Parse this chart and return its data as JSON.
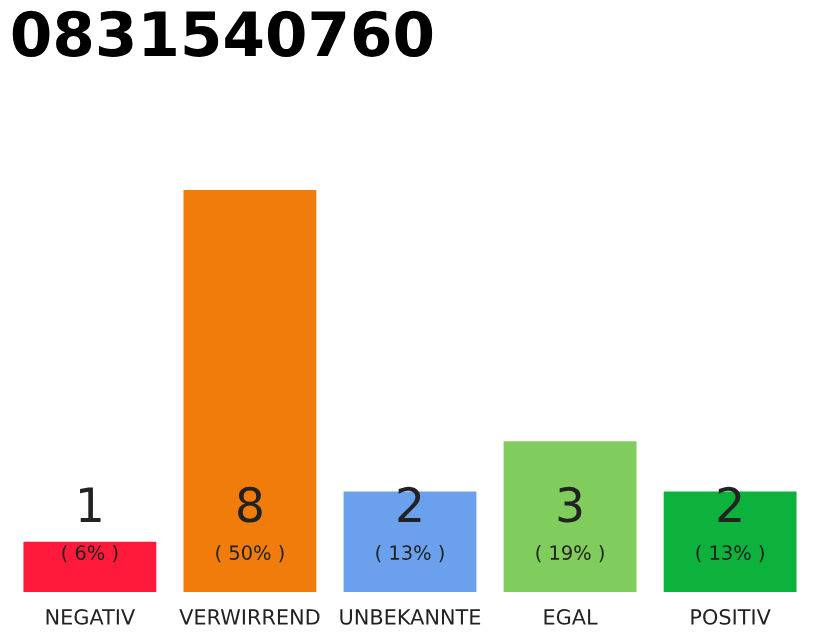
{
  "chart_data": {
    "type": "bar",
    "title": "0831540760",
    "categories": [
      "NEGATIV",
      "VERWIRREND",
      "UNBEKANNTE",
      "EGAL",
      "POSITIV"
    ],
    "values": [
      1,
      8,
      2,
      3,
      2
    ],
    "colors": [
      "#ff1a3c",
      "#f07c0c",
      "#6aa0ec",
      "#80cc5c",
      "#0cb23c"
    ],
    "ylim": [
      0,
      8
    ],
    "data_labels": true,
    "annotations": [
      "( 6% )",
      "( 50% )",
      "( 13% )",
      "( 19% )",
      "( 13% )"
    ],
    "grid": false,
    "legend": false
  }
}
